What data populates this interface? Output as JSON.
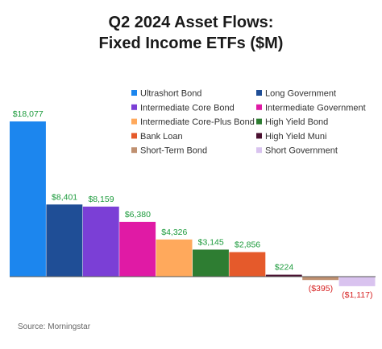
{
  "chart_data": {
    "type": "bar",
    "title_line1": "Q2 2024 Asset Flows:",
    "title_line2": "Fixed Income ETFs ($M)",
    "xlabel": "",
    "ylabel": "",
    "ylim": [
      -1117,
      18077
    ],
    "grid": false,
    "legend_position": "top-right",
    "series": [
      {
        "name": "Ultrashort Bond",
        "value": 18077,
        "label": "$18,077",
        "color": "#1c86ee"
      },
      {
        "name": "Long Government",
        "value": 8401,
        "label": "$8,401",
        "color": "#1f4e96"
      },
      {
        "name": "Intermediate Core Bond",
        "value": 8159,
        "label": "$8,159",
        "color": "#7b3fd6"
      },
      {
        "name": "Intermediate Government",
        "value": 6380,
        "label": "$6,380",
        "color": "#e01aa5"
      },
      {
        "name": "Intermediate Core-Plus Bond",
        "value": 4326,
        "label": "$4,326",
        "color": "#ffa95c"
      },
      {
        "name": "High Yield Bond",
        "value": 3145,
        "label": "$3,145",
        "color": "#2e7d32"
      },
      {
        "name": "Bank Loan",
        "value": 2856,
        "label": "$2,856",
        "color": "#e55a2b"
      },
      {
        "name": "High Yield Muni",
        "value": 224,
        "label": "$224",
        "color": "#4a1030"
      },
      {
        "name": "Short-Term Bond",
        "value": -395,
        "label": "($395)",
        "color": "#bf9070"
      },
      {
        "name": "Short Government",
        "value": -1117,
        "label": "($1,117)",
        "color": "#d9c3ef"
      }
    ],
    "positive_label_color": "#1a9a3a",
    "negative_label_color": "#d62020",
    "baseline_color": "#555555"
  },
  "source": "Source: Morningstar"
}
